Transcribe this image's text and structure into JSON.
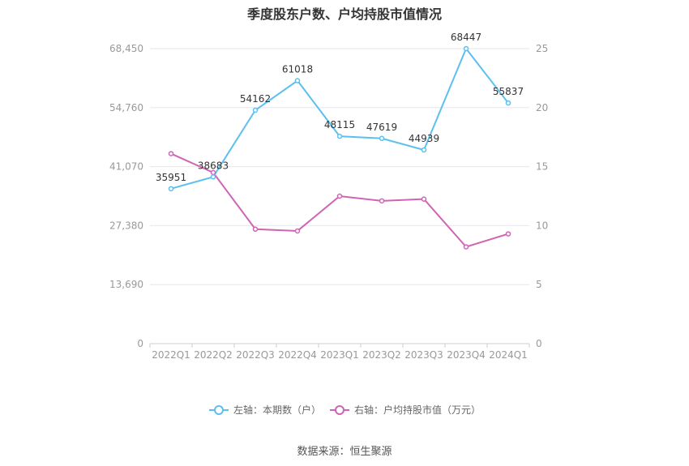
{
  "chart_data": {
    "type": "line",
    "title": "季度股东户数、户均持股市值情况",
    "categories": [
      "2022Q1",
      "2022Q2",
      "2022Q3",
      "2022Q4",
      "2023Q1",
      "2023Q2",
      "2023Q3",
      "2023Q4",
      "2024Q1"
    ],
    "series": [
      {
        "name": "左轴：本期数（户）",
        "axis": "left",
        "color": "#5bc0f0",
        "values": [
          35951,
          38683,
          54162,
          61018,
          48115,
          47619,
          44939,
          68447,
          55837
        ],
        "labels": [
          "35951",
          "38683",
          "54162",
          "61018",
          "48115",
          "47619",
          "44939",
          "68447",
          "55837"
        ]
      },
      {
        "name": "右轴：户均持股市值（万元）",
        "axis": "right",
        "color": "#d064b4",
        "values": [
          16.1,
          14.5,
          9.7,
          9.55,
          12.5,
          12.1,
          12.25,
          8.2,
          9.3
        ]
      }
    ],
    "y_left": {
      "min": 0,
      "max": 68450,
      "ticks": [
        "0",
        "13,690",
        "27,380",
        "41,070",
        "54,760",
        "68,450"
      ],
      "tick_values": [
        0,
        13690,
        27380,
        41070,
        54760,
        68450
      ]
    },
    "y_right": {
      "min": 0,
      "max": 25,
      "ticks": [
        "0",
        "5",
        "10",
        "15",
        "20",
        "25"
      ],
      "tick_values": [
        0,
        5,
        10,
        15,
        20,
        25
      ]
    },
    "grid": true,
    "legend_position": "bottom"
  },
  "source": "数据来源：恒生聚源"
}
